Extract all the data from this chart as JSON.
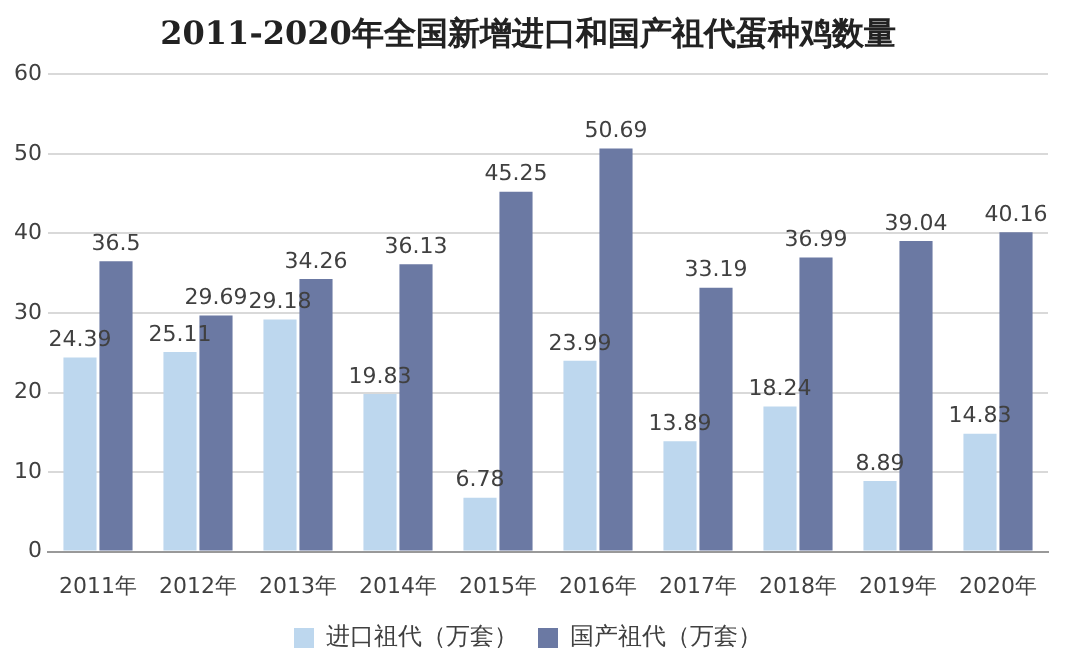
{
  "chart_data": {
    "type": "bar",
    "title": "2011-2020年全国新增进口和国产祖代蛋种鸡数量",
    "categories": [
      "2011年",
      "2012年",
      "2013年",
      "2014年",
      "2015年",
      "2016年",
      "2017年",
      "2018年",
      "2019年",
      "2020年"
    ],
    "series": [
      {
        "name": "进口祖代（万套）",
        "color": "#bdd7ee",
        "values": [
          24.39,
          25.11,
          29.18,
          19.83,
          6.78,
          23.99,
          13.89,
          18.24,
          8.89,
          14.83
        ]
      },
      {
        "name": "国产祖代（万套）",
        "color": "#6b79a3",
        "values": [
          36.5,
          29.69,
          34.26,
          36.13,
          45.25,
          50.69,
          33.19,
          36.99,
          39.04,
          40.16
        ]
      }
    ],
    "ylim": [
      0,
      60
    ],
    "yticks": [
      0,
      10,
      20,
      30,
      40,
      50,
      60
    ],
    "grid": "y",
    "legend": "bottom",
    "data_labels": true
  }
}
